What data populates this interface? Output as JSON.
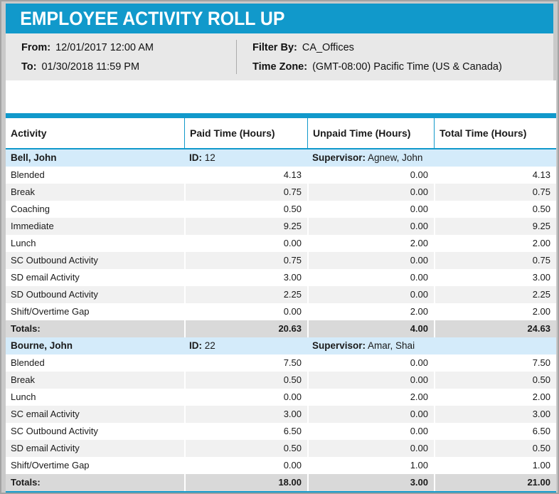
{
  "page": {
    "title": "EMPLOYEE ACTIVITY ROLL UP",
    "colors": {
      "accent": "#1199cb",
      "section_row": "#d4ebfa",
      "alt_row": "#f1f1f1",
      "totals_row": "#d9d9d9",
      "panel_bg": "#e8e8e8"
    }
  },
  "filters": {
    "from_label": "From:",
    "from_value": "12/01/2017 12:00 AM",
    "to_label": "To:",
    "to_value": "01/30/2018 11:59 PM",
    "filter_by_label": "Filter By:",
    "filter_by_value": "CA_Offices",
    "time_zone_label": "Time Zone:",
    "time_zone_value": "(GMT-08:00) Pacific Time (US & Canada)"
  },
  "table": {
    "columns": [
      "Activity",
      "Paid Time (Hours)",
      "Unpaid Time (Hours)",
      "Total Time (Hours)"
    ],
    "id_label": "ID:",
    "supervisor_label": "Supervisor:",
    "totals_label": "Totals:",
    "sections": [
      {
        "employee": "Bell, John",
        "id": "12",
        "supervisor": "Agnew, John",
        "rows": [
          [
            "Blended",
            "4.13",
            "0.00",
            "4.13"
          ],
          [
            "Break",
            "0.75",
            "0.00",
            "0.75"
          ],
          [
            "Coaching",
            "0.50",
            "0.00",
            "0.50"
          ],
          [
            "Immediate",
            "9.25",
            "0.00",
            "9.25"
          ],
          [
            "Lunch",
            "0.00",
            "2.00",
            "2.00"
          ],
          [
            "SC Outbound Activity",
            "0.75",
            "0.00",
            "0.75"
          ],
          [
            "SD email Activity",
            "3.00",
            "0.00",
            "3.00"
          ],
          [
            "SD Outbound Activity",
            "2.25",
            "0.00",
            "2.25"
          ],
          [
            "Shift/Overtime Gap",
            "0.00",
            "2.00",
            "2.00"
          ]
        ],
        "totals": [
          "20.63",
          "4.00",
          "24.63"
        ]
      },
      {
        "employee": "Bourne, John",
        "id": "22",
        "supervisor": "Amar, Shai",
        "rows": [
          [
            "Blended",
            "7.50",
            "0.00",
            "7.50"
          ],
          [
            "Break",
            "0.50",
            "0.00",
            "0.50"
          ],
          [
            "Lunch",
            "0.00",
            "2.00",
            "2.00"
          ],
          [
            "SC email Activity",
            "3.00",
            "0.00",
            "3.00"
          ],
          [
            "SC Outbound Activity",
            "6.50",
            "0.00",
            "6.50"
          ],
          [
            "SD email Activity",
            "0.50",
            "0.00",
            "0.50"
          ],
          [
            "Shift/Overtime Gap",
            "0.00",
            "1.00",
            "1.00"
          ]
        ],
        "totals": [
          "18.00",
          "3.00",
          "21.00"
        ]
      }
    ]
  }
}
